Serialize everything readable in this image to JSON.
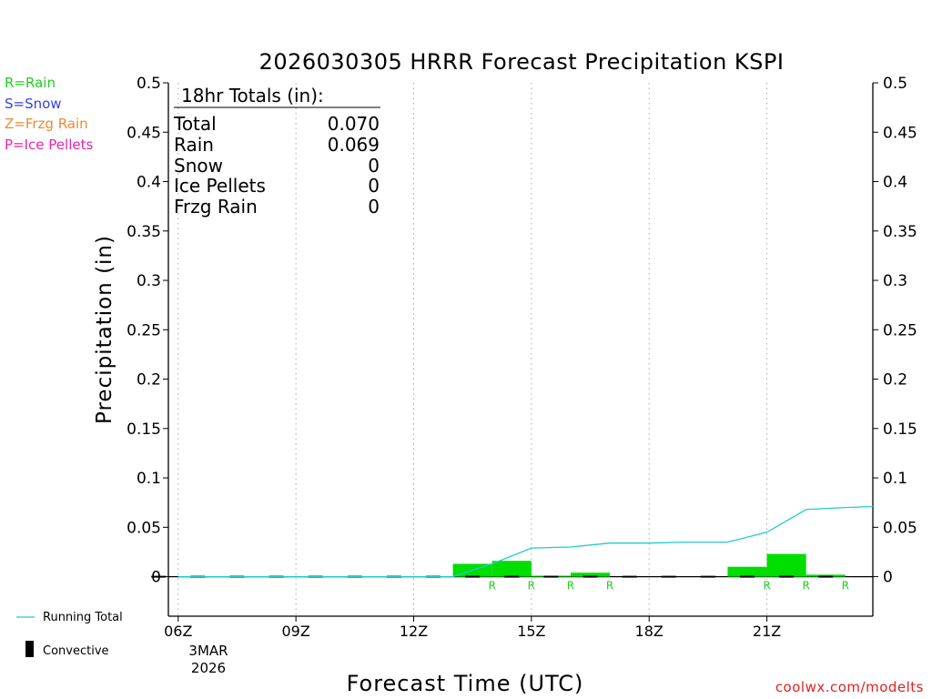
{
  "chart_data": {
    "type": "bar",
    "title": "2026030305 HRRR Forecast Precipitation KSPI",
    "xlabel": "Forecast Time (UTC)",
    "ylabel": "Precipitation (in)",
    "ylim": [
      -0.04,
      0.5
    ],
    "xlim": [
      5.75,
      23.7
    ],
    "yticks": [
      0,
      0.05,
      0.1,
      0.15,
      0.2,
      0.25,
      0.3,
      0.35,
      0.4,
      0.45,
      0.5
    ],
    "ytick_labels": [
      "0",
      "0.05",
      "0.1",
      "0.15",
      "0.2",
      "0.25",
      "0.3",
      "0.35",
      "0.4",
      "0.45",
      "0.5"
    ],
    "xticks": [
      6,
      9,
      12,
      15,
      18,
      21
    ],
    "xtick_labels": [
      "06Z",
      "09Z",
      "12Z",
      "15Z",
      "18Z",
      "21Z"
    ],
    "date_label_line1": "3MAR",
    "date_label_line2": "2026",
    "grid": "vertical dotted at x ticks",
    "hourly_bars": [
      {
        "hour": 14,
        "value": 0.013,
        "type": "R"
      },
      {
        "hour": 15,
        "value": 0.016,
        "type": "R"
      },
      {
        "hour": 16,
        "value": 0.001,
        "type": "R"
      },
      {
        "hour": 17,
        "value": 0.004,
        "type": "R"
      },
      {
        "hour": 21,
        "value": 0.01,
        "type": "R"
      },
      {
        "hour": 22,
        "value": 0.023,
        "type": "R"
      },
      {
        "hour": 23,
        "value": 0.002,
        "type": "R"
      }
    ],
    "running_total": {
      "x": [
        6,
        13,
        14,
        15,
        16,
        17,
        18,
        19,
        20,
        21,
        22,
        23,
        23.7
      ],
      "y": [
        0,
        0,
        0.013,
        0.029,
        0.03,
        0.034,
        0.034,
        0.035,
        0.035,
        0.045,
        0.068,
        0.07,
        0.071
      ]
    },
    "convective_hours": [
      6,
      7,
      8,
      9,
      10,
      11,
      12,
      13,
      14,
      15,
      16,
      17,
      18,
      19,
      20,
      21,
      22,
      23
    ],
    "bar_color": "#00dd00",
    "running_total_color": "#22cccc",
    "ptype_colors": {
      "R": "#22cc22",
      "S": "#3344dd",
      "Z": "#ee8833",
      "P": "#ee22aa"
    }
  },
  "totals": {
    "header": "18hr Totals (in):",
    "rows": [
      {
        "label": "Total",
        "value": "0.070"
      },
      {
        "label": "Rain",
        "value": "0.069"
      },
      {
        "label": "Snow",
        "value": "0"
      },
      {
        "label": "Ice Pellets",
        "value": "0"
      },
      {
        "label": "Frzg Rain",
        "value": "0"
      }
    ]
  },
  "ptype_legend": [
    {
      "label": "R=Rain",
      "color": "#22cc22"
    },
    {
      "label": "S=Snow",
      "color": "#3344dd"
    },
    {
      "label": "Z=Frzg Rain",
      "color": "#ee8833"
    },
    {
      "label": "P=Ice Pellets",
      "color": "#ee22aa"
    }
  ],
  "series_legend": {
    "running_total": "Running Total",
    "convective": "Convective"
  },
  "credit": "coolwx.com/modelts",
  "credit_color": "#dd2222"
}
